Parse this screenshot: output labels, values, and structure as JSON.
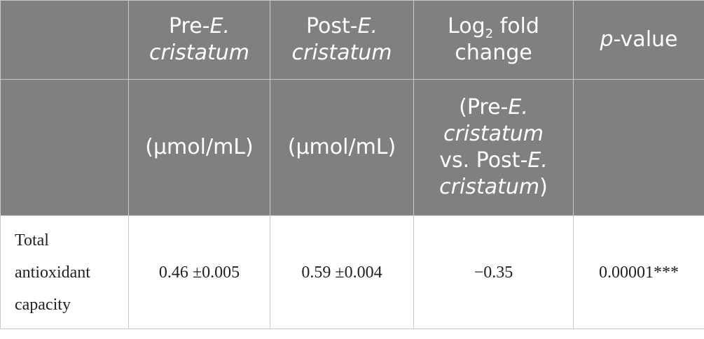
{
  "header": {
    "columns": [
      {
        "title": [
          {
            "text": "Pre-"
          },
          {
            "text": "E. cristatum",
            "italic": true
          }
        ],
        "unit": [
          {
            "text": "(μmol/mL)"
          }
        ]
      },
      {
        "title": [
          {
            "text": "Post-"
          },
          {
            "text": "E. cristatum",
            "italic": true
          }
        ],
        "unit": [
          {
            "text": "(μmol/mL)"
          }
        ]
      },
      {
        "title": [
          {
            "text": "Log"
          },
          {
            "text": "2",
            "sub": true
          },
          {
            "text": " fold change"
          }
        ],
        "unit": [
          {
            "text": "(Pre-"
          },
          {
            "text": "E. cristatum",
            "italic": true
          },
          {
            "text": " vs. Post-"
          },
          {
            "text": "E. cristatum",
            "italic": true
          },
          {
            "text": ")"
          }
        ]
      },
      {
        "title": [
          {
            "text": "p",
            "italic": true
          },
          {
            "text": "-value"
          }
        ]
      }
    ]
  },
  "table": {
    "rows": [
      [
        "Total antioxidant capacity",
        "0.46 ±0.005",
        "0.59 ±0.004",
        "−0.35",
        "0.00001***"
      ]
    ]
  }
}
